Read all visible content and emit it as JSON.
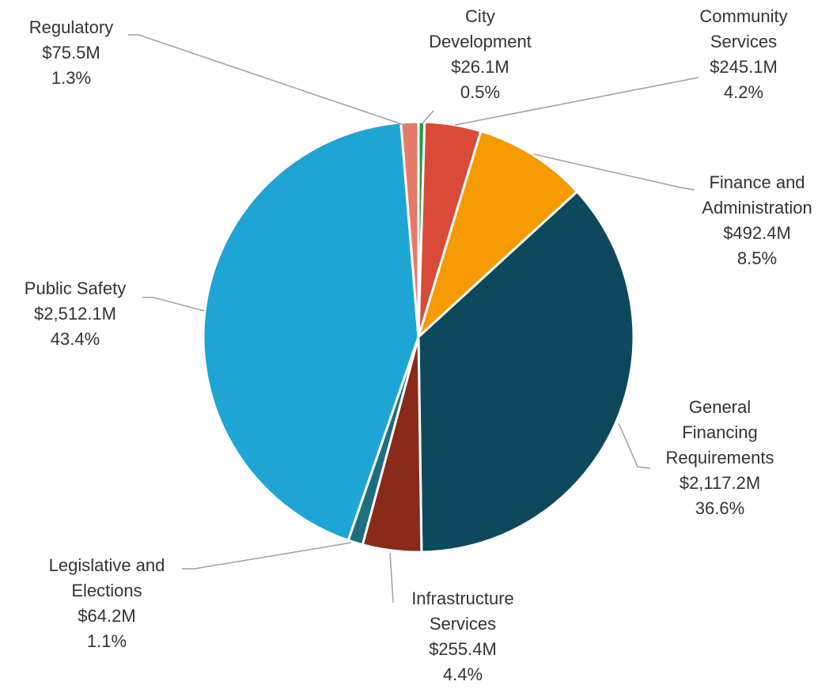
{
  "chart_data": {
    "type": "pie",
    "categories": [
      "City Development",
      "Community Services",
      "Finance and Administration",
      "General Financing Requirements",
      "Infrastructure Services",
      "Legislative and Elections",
      "Public Safety",
      "Regulatory"
    ],
    "values": [
      26.1,
      245.1,
      492.4,
      2117.2,
      255.4,
      64.2,
      2512.1,
      75.5
    ],
    "value_labels": [
      "$26.1M",
      "$245.1M",
      "$492.4M",
      "$2,117.2M",
      "$255.4M",
      "$64.2M",
      "$2,512.1M",
      "$75.5M"
    ],
    "percentages": [
      0.5,
      4.2,
      8.5,
      36.6,
      4.4,
      1.1,
      43.4,
      1.3
    ],
    "percentage_labels": [
      "0.5%",
      "4.2%",
      "8.5%",
      "36.6%",
      "4.4%",
      "1.1%",
      "43.4%",
      "1.3%"
    ],
    "colors": [
      "#1e9a4a",
      "#d94a38",
      "#f59a00",
      "#0e485c",
      "#8a2a1a",
      "#1f6e7d",
      "#1fa5d4",
      "#e47a6a"
    ]
  }
}
